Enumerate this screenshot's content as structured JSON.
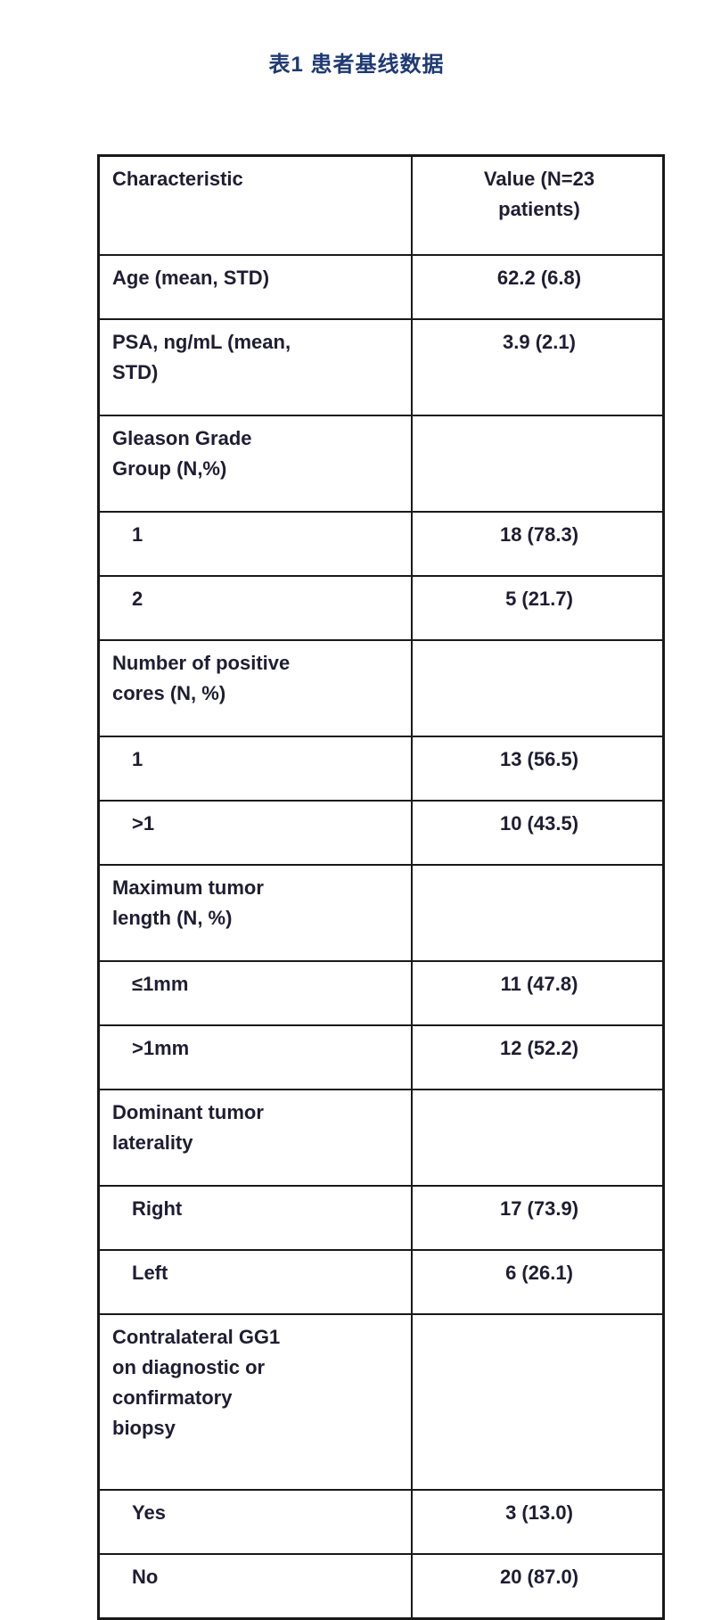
{
  "page": {
    "caption": "表1 患者基线数据"
  },
  "colors": {
    "caption_text": "#1e3a75",
    "table_text": "#1f1d33",
    "table_border": "#191919",
    "background": "#ffffff"
  },
  "table": {
    "header": {
      "characteristic_lines": [
        "Characteristic"
      ],
      "value_lines": [
        "Value (N=23",
        "patients)"
      ]
    },
    "rows": [
      {
        "label_lines": [
          "Age (mean, STD)"
        ],
        "value": "62.2 (6.8)",
        "sub": false
      },
      {
        "label_lines": [
          "PSA, ng/mL (mean,",
          "STD)"
        ],
        "value": "3.9 (2.1)",
        "sub": false
      },
      {
        "label_lines": [
          "Gleason Grade",
          "Group (N,%)"
        ],
        "value": "",
        "sub": false
      },
      {
        "label_lines": [
          "1"
        ],
        "value": "18 (78.3)",
        "sub": true
      },
      {
        "label_lines": [
          "2"
        ],
        "value": "5 (21.7)",
        "sub": true
      },
      {
        "label_lines": [
          "Number of positive",
          "cores (N, %)"
        ],
        "value": "",
        "sub": false
      },
      {
        "label_lines": [
          "1"
        ],
        "value": "13 (56.5)",
        "sub": true
      },
      {
        "label_lines": [
          ">1"
        ],
        "value": "10 (43.5)",
        "sub": true
      },
      {
        "label_lines": [
          "Maximum tumor",
          "length (N, %)"
        ],
        "value": "",
        "sub": false
      },
      {
        "label_lines": [
          "≤1mm"
        ],
        "value": "11 (47.8)",
        "sub": true
      },
      {
        "label_lines": [
          ">1mm"
        ],
        "value": "12 (52.2)",
        "sub": true
      },
      {
        "label_lines": [
          "Dominant tumor",
          "laterality"
        ],
        "value": "",
        "sub": false
      },
      {
        "label_lines": [
          "Right"
        ],
        "value": "17 (73.9)",
        "sub": true
      },
      {
        "label_lines": [
          "Left"
        ],
        "value": "6 (26.1)",
        "sub": true
      },
      {
        "label_lines": [
          "Contralateral GG1",
          "on diagnostic or",
          "confirmatory",
          "biopsy"
        ],
        "value": "",
        "sub": false
      },
      {
        "label_lines": [
          "Yes"
        ],
        "value": "3 (13.0)",
        "sub": true
      },
      {
        "label_lines": [
          "No"
        ],
        "value": "20 (87.0)",
        "sub": true
      }
    ]
  }
}
